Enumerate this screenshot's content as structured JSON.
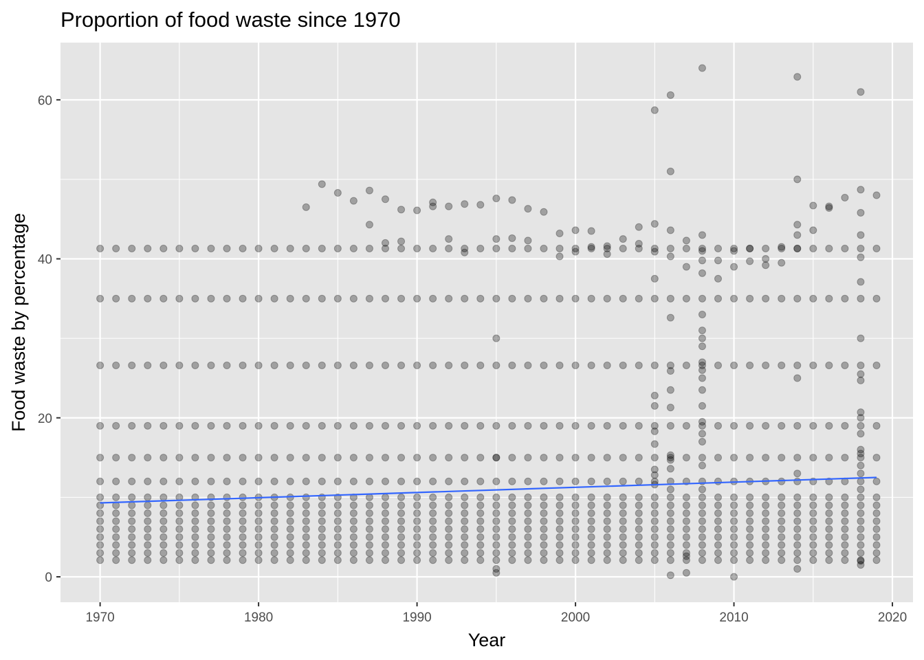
{
  "chart_data": {
    "type": "scatter",
    "title": "Proportion of food waste since 1970",
    "xlabel": "Year",
    "ylabel": "Food waste by percentage",
    "xlim": [
      1967.5,
      2021.3
    ],
    "ylim": [
      -3.2,
      67.2
    ],
    "x_ticks": [
      1970,
      1980,
      1990,
      2000,
      2010,
      2020
    ],
    "y_ticks": [
      0,
      20,
      40,
      60
    ],
    "grid": true,
    "colors": {
      "panel": "#e5e5e5",
      "grid": "#ffffff",
      "points": "#000000",
      "trend_line": "#3366ff"
    },
    "point_opacity": 0.3,
    "trend_line": {
      "method": "linear",
      "x": [
        1970,
        2019
      ],
      "y": [
        9.3,
        12.5
      ]
    },
    "series": [
      {
        "regular_years": [
          1970,
          2019
        ],
        "regular_levels": [
          2.1,
          3,
          4,
          5,
          6,
          7,
          8,
          9,
          10,
          12,
          15,
          19,
          26.6,
          35,
          41.3
        ],
        "extra_points": [
          [
            1983,
            46.5
          ],
          [
            1984,
            49.4
          ],
          [
            1985,
            48.3
          ],
          [
            1986,
            47.3
          ],
          [
            1987,
            48.6
          ],
          [
            1987,
            44.3
          ],
          [
            1988,
            47.5
          ],
          [
            1988,
            42
          ],
          [
            1989,
            46.2
          ],
          [
            1989,
            42.2
          ],
          [
            1990,
            46.1
          ],
          [
            1991,
            47.1
          ],
          [
            1991,
            46.6
          ],
          [
            1992,
            46.6
          ],
          [
            1992,
            42.5
          ],
          [
            1993,
            46.9
          ],
          [
            1993,
            40.8
          ],
          [
            1994,
            46.8
          ],
          [
            1995,
            47.6
          ],
          [
            1995,
            42.5
          ],
          [
            1995,
            30
          ],
          [
            1995,
            15
          ],
          [
            1995,
            1
          ],
          [
            1995,
            0.5
          ],
          [
            1996,
            47.4
          ],
          [
            1996,
            42.6
          ],
          [
            1997,
            46.3
          ],
          [
            1997,
            42.3
          ],
          [
            1998,
            45.9
          ],
          [
            1999,
            43.2
          ],
          [
            1999,
            40.3
          ],
          [
            2000,
            43.6
          ],
          [
            2000,
            40.9
          ],
          [
            2001,
            43.5
          ],
          [
            2001,
            41.5
          ],
          [
            2002,
            40.6
          ],
          [
            2002,
            41.6
          ],
          [
            2003,
            42.5
          ],
          [
            2004,
            44
          ],
          [
            2004,
            41.9
          ],
          [
            2005,
            58.7
          ],
          [
            2005,
            44.4
          ],
          [
            2005,
            40.9
          ],
          [
            2005,
            37.5
          ],
          [
            2005,
            22.8
          ],
          [
            2005,
            21.5
          ],
          [
            2005,
            18.3
          ],
          [
            2005,
            16.7
          ],
          [
            2005,
            13.5
          ],
          [
            2005,
            12.8
          ],
          [
            2005,
            11.6
          ],
          [
            2006,
            60.6
          ],
          [
            2006,
            51
          ],
          [
            2006,
            43.6
          ],
          [
            2006,
            40.3
          ],
          [
            2006,
            32.6
          ],
          [
            2006,
            25.9
          ],
          [
            2006,
            23.5
          ],
          [
            2006,
            21.3
          ],
          [
            2006,
            15.3
          ],
          [
            2006,
            14.7
          ],
          [
            2006,
            13.6
          ],
          [
            2006,
            11
          ],
          [
            2006,
            0.2
          ],
          [
            2007,
            42.3
          ],
          [
            2007,
            39
          ],
          [
            2007,
            2.6
          ],
          [
            2007,
            0.5
          ],
          [
            2008,
            64
          ],
          [
            2008,
            43
          ],
          [
            2008,
            41
          ],
          [
            2008,
            39.8
          ],
          [
            2008,
            38.2
          ],
          [
            2008,
            33
          ],
          [
            2008,
            31
          ],
          [
            2008,
            30
          ],
          [
            2008,
            29
          ],
          [
            2008,
            27
          ],
          [
            2008,
            26
          ],
          [
            2008,
            25
          ],
          [
            2008,
            23.5
          ],
          [
            2008,
            21.5
          ],
          [
            2008,
            19.5
          ],
          [
            2008,
            18
          ],
          [
            2008,
            17
          ],
          [
            2008,
            14
          ],
          [
            2008,
            11
          ],
          [
            2009,
            39.8
          ],
          [
            2009,
            37.5
          ],
          [
            2010,
            41
          ],
          [
            2010,
            39
          ],
          [
            2010,
            0
          ],
          [
            2011,
            41.3
          ],
          [
            2011,
            39.7
          ],
          [
            2012,
            40
          ],
          [
            2012,
            39.2
          ],
          [
            2013,
            41.5
          ],
          [
            2013,
            39.5
          ],
          [
            2014,
            62.9
          ],
          [
            2014,
            50
          ],
          [
            2014,
            44.3
          ],
          [
            2014,
            43
          ],
          [
            2014,
            41.3
          ],
          [
            2014,
            25
          ],
          [
            2014,
            13
          ],
          [
            2014,
            1
          ],
          [
            2015,
            46.7
          ],
          [
            2015,
            43.6
          ],
          [
            2016,
            46.6
          ],
          [
            2016,
            46.4
          ],
          [
            2017,
            47.7
          ],
          [
            2018,
            61
          ],
          [
            2018,
            48.7
          ],
          [
            2018,
            45.8
          ],
          [
            2018,
            43
          ],
          [
            2018,
            40.2
          ],
          [
            2018,
            37.1
          ],
          [
            2018,
            30
          ],
          [
            2018,
            25.5
          ],
          [
            2018,
            24.7
          ],
          [
            2018,
            20.7
          ],
          [
            2018,
            20
          ],
          [
            2018,
            18
          ],
          [
            2018,
            16
          ],
          [
            2018,
            15.5
          ],
          [
            2018,
            14
          ],
          [
            2018,
            13
          ],
          [
            2018,
            11
          ],
          [
            2018,
            2
          ],
          [
            2018,
            1.5
          ],
          [
            2019,
            48
          ]
        ]
      }
    ]
  }
}
